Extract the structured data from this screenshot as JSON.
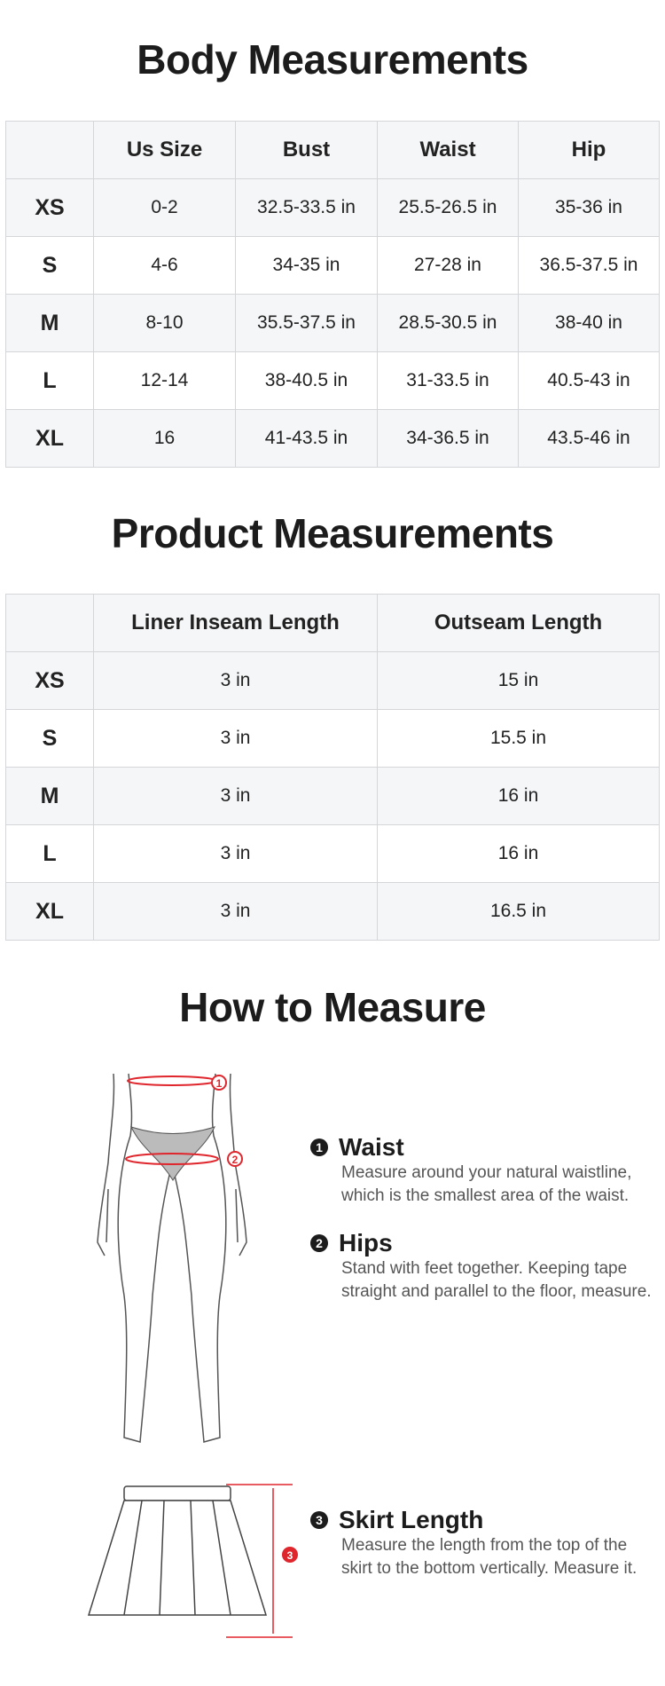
{
  "body": {
    "title": "Body Measurements",
    "headers": [
      "",
      "Us Size",
      "Bust",
      "Waist",
      "Hip"
    ],
    "rows": [
      [
        "XS",
        "0-2",
        "32.5-33.5 in",
        "25.5-26.5 in",
        "35-36 in"
      ],
      [
        "S",
        "4-6",
        "34-35 in",
        "27-28 in",
        "36.5-37.5 in"
      ],
      [
        "M",
        "8-10",
        "35.5-37.5 in",
        "28.5-30.5 in",
        "38-40 in"
      ],
      [
        "L",
        "12-14",
        "38-40.5 in",
        "31-33.5 in",
        "40.5-43 in"
      ],
      [
        "XL",
        "16",
        "41-43.5 in",
        "34-36.5 in",
        "43.5-46 in"
      ]
    ]
  },
  "product": {
    "title": "Product Measurements",
    "headers": [
      "",
      "Liner Inseam Length",
      "Outseam Length"
    ],
    "rows": [
      [
        "XS",
        "3 in",
        "15 in"
      ],
      [
        "S",
        "3 in",
        "15.5 in"
      ],
      [
        "M",
        "3 in",
        "16 in"
      ],
      [
        "L",
        "3 in",
        "16 in"
      ],
      [
        "XL",
        "3 in",
        "16.5 in"
      ]
    ]
  },
  "howto": {
    "title": "How to Measure",
    "accent": "#e0262d",
    "steps": [
      {
        "num": "1",
        "title": "Waist",
        "text": "Measure around your natural waistline, which is the smallest area of the waist."
      },
      {
        "num": "2",
        "title": "Hips",
        "text": "Stand with feet together. Keeping tape straight and parallel to the floor, measure."
      },
      {
        "num": "3",
        "title": "Skirt Length",
        "text": "Measure the length from the top of the skirt to the bottom vertically. Measure it."
      }
    ]
  }
}
